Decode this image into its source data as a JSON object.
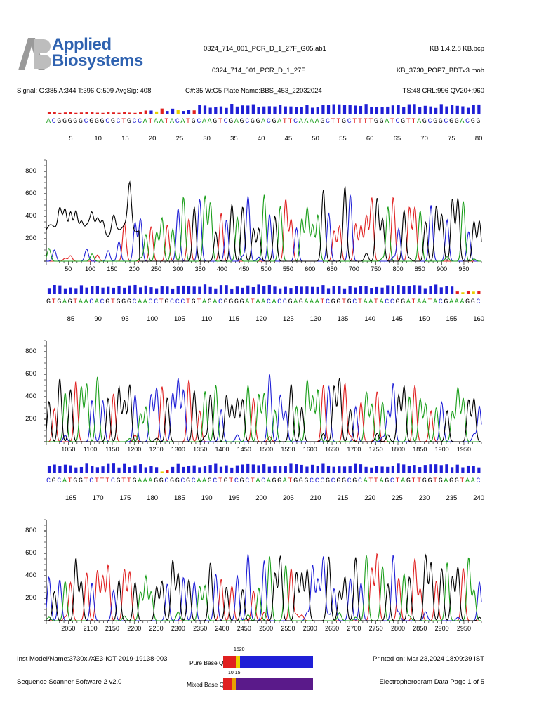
{
  "header": {
    "logo_line1": "Applied",
    "logo_line2": "Biosystems",
    "file_name": "0324_714_001_PCR_D_1_27F_G05.ab1",
    "sample_name": "0324_714_001_PCR_D_1_27F",
    "kb_version": "KB 1.4.2.8  KB.bcp",
    "mobility": "KB_3730_POP7_BDTv3.mob",
    "signal": "Signal: G:385 A:344 T:396 C:509 AvgSig: 408",
    "capillary_plate": "C#:35  W:G5  Plate Name:BBS_453_22032024",
    "stats": "TS:48  CRL:996  QV20+:960"
  },
  "colors": {
    "A": "#1a9e1a",
    "C": "#1f1fd6",
    "G": "#000000",
    "T": "#e02020",
    "qv_high": "#1f1fd6",
    "qv_mid": "#e8d000",
    "qv_low": "#e02020",
    "mixed": "#5a1a8a"
  },
  "chart_data": [
    {
      "type": "line",
      "title": "",
      "sequence": "ACGGGGGCGGGCGCTGCCATAATACATGCAAGTCGAGCGGACGATTCAAAAGCTTGCTTTTGGATCGTTAGCGGCGGACGG",
      "base_labels": [
        "5",
        "10",
        "15",
        "20",
        "25",
        "30",
        "35",
        "40",
        "45",
        "50",
        "55",
        "60",
        "65",
        "70",
        "75",
        "80"
      ],
      "y_ticks": [
        "200",
        "400",
        "600",
        "800"
      ],
      "ylim": [
        0,
        900
      ],
      "x_ticks": [
        "50",
        "100",
        "150",
        "200",
        "250",
        "300",
        "350",
        "400",
        "450",
        "500",
        "550",
        "600",
        "650",
        "700",
        "750",
        "800",
        "850",
        "900",
        "950"
      ],
      "xlim": [
        0,
        990
      ]
    },
    {
      "type": "line",
      "title": "",
      "sequence": "GTGAGTAACACGTGGGCAACCTGCCCTGTAGACGGGGATAACACCGAGAAATCGGTGCTAATACCGGATAATACGAAAGGC",
      "base_labels": [
        "85",
        "90",
        "95",
        "100",
        "105",
        "110",
        "115",
        "120",
        "125",
        "130",
        "135",
        "140",
        "145",
        "150",
        "155",
        "160"
      ],
      "y_ticks": [
        "200",
        "400",
        "600",
        "800"
      ],
      "ylim": [
        0,
        900
      ],
      "x_ticks": [
        "1050",
        "1100",
        "1150",
        "1200",
        "1250",
        "1300",
        "1350",
        "1400",
        "1450",
        "1500",
        "1550",
        "1600",
        "1650",
        "1700",
        "1750",
        "1800",
        "1850",
        "1900",
        "1950"
      ],
      "xlim": [
        1000,
        1990
      ]
    },
    {
      "type": "line",
      "title": "",
      "sequence": "CGCATGGTCTTTCGTTGAAAGGCGGCGCAAGCTGTCGCTACAGGATGGGCCCGCGGCGCATTAGCTAGTTGGTGAGGTAAC",
      "base_labels": [
        "165",
        "170",
        "175",
        "180",
        "185",
        "190",
        "195",
        "200",
        "205",
        "210",
        "215",
        "220",
        "225",
        "230",
        "235",
        "240"
      ],
      "y_ticks": [
        "200",
        "400",
        "600",
        "800"
      ],
      "ylim": [
        0,
        900
      ],
      "x_ticks": [
        "2050",
        "2100",
        "2150",
        "2200",
        "2250",
        "2300",
        "2350",
        "2400",
        "2450",
        "2500",
        "2550",
        "2600",
        "2650",
        "2700",
        "2750",
        "2800",
        "2850",
        "2900",
        "2950"
      ],
      "xlim": [
        2000,
        2990
      ]
    }
  ],
  "footer": {
    "instrument": "Inst Model/Name:3730xl/XE3-IOT-2019-19138-003",
    "software": "Sequence Scanner Software 2 v2.0",
    "printed": "Printed on: Mar 23,2024 18:09:39 IST",
    "page": "Electropherogram Data Page 1 of 5",
    "pure_label": "Pure Base QVs:",
    "pure_top": "1520",
    "mixed_label": "Mixed Base QVs:",
    "mixed_top": "10 15"
  }
}
